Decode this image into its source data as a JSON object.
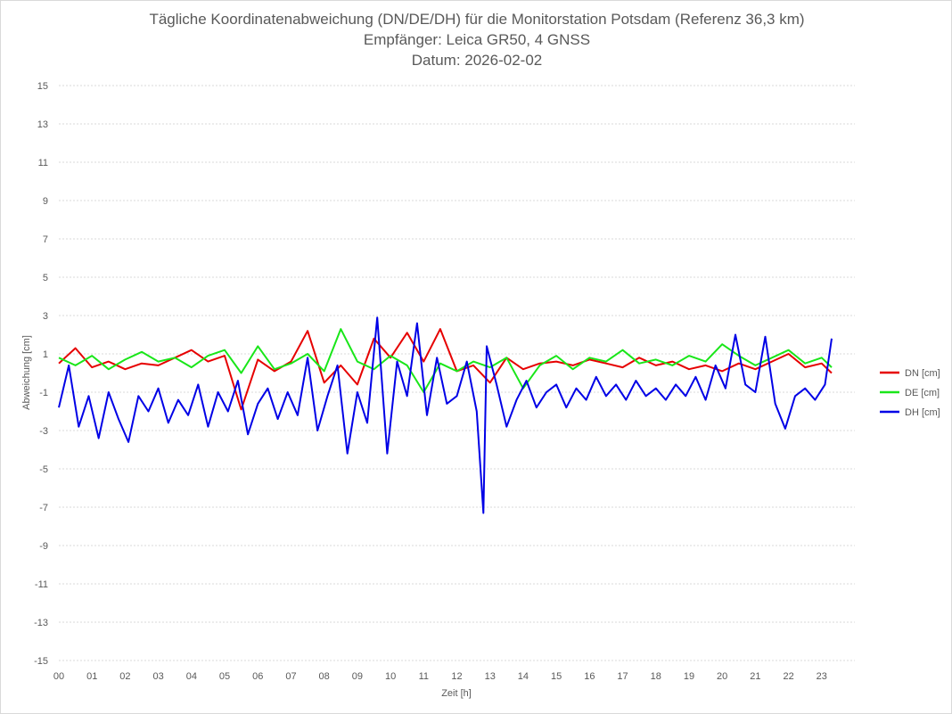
{
  "chart_data": {
    "type": "line",
    "title": [
      "Tägliche Koordinatenabweichung (DN/DE/DH) für die Monitorstation Potsdam (Referenz 36,3 km)",
      "Empfänger: Leica GR50, 4 GNSS",
      "Datum: 2026-02-02"
    ],
    "xlabel": "Zeit [h]",
    "ylabel": "Abweichung [cm]",
    "xlim": [
      0,
      24
    ],
    "ylim": [
      -15,
      15
    ],
    "grid": true,
    "legend_position": "right",
    "x_tick_labels": [
      "00",
      "01",
      "02",
      "03",
      "04",
      "05",
      "06",
      "07",
      "08",
      "09",
      "10",
      "11",
      "12",
      "13",
      "14",
      "15",
      "16",
      "17",
      "18",
      "19",
      "20",
      "21",
      "22",
      "23"
    ],
    "y_tick_values": [
      15,
      13,
      11,
      9,
      7,
      5,
      3,
      1,
      -1,
      -3,
      -5,
      -7,
      -9,
      -11,
      -13,
      -15
    ],
    "y_tick_labels": [
      "15",
      "13",
      "11",
      "9",
      "7",
      "5",
      "3",
      "1",
      "-1",
      "-3",
      "-5",
      "-7",
      "-9",
      "-11",
      "-13",
      "-15"
    ],
    "series": [
      {
        "name": "DN [cm]",
        "color": "#e60000",
        "x": [
          0,
          0.5,
          1,
          1.5,
          2,
          2.5,
          3,
          3.5,
          4,
          4.5,
          5,
          5.5,
          6,
          6.5,
          7,
          7.5,
          8,
          8.5,
          9,
          9.5,
          10,
          10.5,
          11,
          11.5,
          12,
          12.5,
          13,
          13.5,
          14,
          14.5,
          15,
          15.5,
          16,
          16.5,
          17,
          17.5,
          18,
          18.5,
          19,
          19.5,
          20,
          20.5,
          21,
          21.5,
          22,
          22.5,
          23,
          23.3
        ],
        "y": [
          0.5,
          1.3,
          0.3,
          0.6,
          0.2,
          0.5,
          0.4,
          0.8,
          1.2,
          0.6,
          0.9,
          -1.9,
          0.7,
          0.1,
          0.6,
          2.2,
          -0.5,
          0.4,
          -0.6,
          1.8,
          0.8,
          2.1,
          0.6,
          2.3,
          0.1,
          0.4,
          -0.5,
          0.8,
          0.2,
          0.5,
          0.6,
          0.4,
          0.7,
          0.5,
          0.3,
          0.8,
          0.4,
          0.6,
          0.2,
          0.4,
          0.1,
          0.5,
          0.2,
          0.6,
          1.0,
          0.3,
          0.5,
          0.0
        ]
      },
      {
        "name": "DE [cm]",
        "color": "#19e619",
        "x": [
          0,
          0.5,
          1,
          1.5,
          2,
          2.5,
          3,
          3.5,
          4,
          4.5,
          5,
          5.5,
          6,
          6.5,
          7,
          7.5,
          8,
          8.5,
          9,
          9.5,
          10,
          10.5,
          11,
          11.5,
          12,
          12.5,
          13,
          13.5,
          14,
          14.5,
          15,
          15.5,
          16,
          16.5,
          17,
          17.5,
          18,
          18.5,
          19,
          19.5,
          20,
          20.5,
          21,
          21.5,
          22,
          22.5,
          23,
          23.3
        ],
        "y": [
          0.8,
          0.4,
          0.9,
          0.2,
          0.7,
          1.1,
          0.6,
          0.8,
          0.3,
          0.9,
          1.2,
          0.0,
          1.4,
          0.2,
          0.5,
          1.0,
          0.1,
          2.3,
          0.6,
          0.2,
          0.9,
          0.4,
          -1.0,
          0.5,
          0.1,
          0.6,
          0.3,
          0.8,
          -0.8,
          0.4,
          0.9,
          0.2,
          0.8,
          0.6,
          1.2,
          0.5,
          0.7,
          0.4,
          0.9,
          0.6,
          1.5,
          0.9,
          0.4,
          0.8,
          1.2,
          0.5,
          0.8,
          0.3
        ]
      },
      {
        "name": "DH [cm]",
        "color": "#0000e6",
        "x": [
          0,
          0.3,
          0.6,
          0.9,
          1.2,
          1.5,
          1.8,
          2.1,
          2.4,
          2.7,
          3.0,
          3.3,
          3.6,
          3.9,
          4.2,
          4.5,
          4.8,
          5.1,
          5.4,
          5.7,
          6.0,
          6.3,
          6.6,
          6.9,
          7.2,
          7.5,
          7.8,
          8.1,
          8.4,
          8.7,
          9.0,
          9.3,
          9.6,
          9.9,
          10.2,
          10.5,
          10.8,
          11.1,
          11.4,
          11.7,
          12.0,
          12.3,
          12.6,
          12.8,
          12.9,
          13.2,
          13.5,
          13.8,
          14.1,
          14.4,
          14.7,
          15.0,
          15.3,
          15.6,
          15.9,
          16.2,
          16.5,
          16.8,
          17.1,
          17.4,
          17.7,
          18.0,
          18.3,
          18.6,
          18.9,
          19.2,
          19.5,
          19.8,
          20.1,
          20.4,
          20.7,
          21.0,
          21.3,
          21.6,
          21.9,
          22.2,
          22.5,
          22.8,
          23.1,
          23.3
        ],
        "y": [
          -1.8,
          0.4,
          -2.8,
          -1.2,
          -3.4,
          -1.0,
          -2.4,
          -3.6,
          -1.2,
          -2.0,
          -0.8,
          -2.6,
          -1.4,
          -2.2,
          -0.6,
          -2.8,
          -1.0,
          -2.0,
          -0.4,
          -3.2,
          -1.6,
          -0.8,
          -2.4,
          -1.0,
          -2.2,
          0.8,
          -3.0,
          -1.2,
          0.4,
          -4.2,
          -1.0,
          -2.6,
          2.9,
          -4.2,
          0.6,
          -1.2,
          2.6,
          -2.2,
          0.8,
          -1.6,
          -1.2,
          0.6,
          -2.0,
          -7.3,
          1.4,
          -0.6,
          -2.8,
          -1.4,
          -0.4,
          -1.8,
          -1.0,
          -0.6,
          -1.8,
          -0.8,
          -1.4,
          -0.2,
          -1.2,
          -0.6,
          -1.4,
          -0.4,
          -1.2,
          -0.8,
          -1.4,
          -0.6,
          -1.2,
          -0.2,
          -1.4,
          0.4,
          -0.8,
          2.0,
          -0.6,
          -1.0,
          1.9,
          -1.6,
          -2.9,
          -1.2,
          -0.8,
          -1.4,
          -0.6,
          1.8
        ]
      }
    ]
  }
}
